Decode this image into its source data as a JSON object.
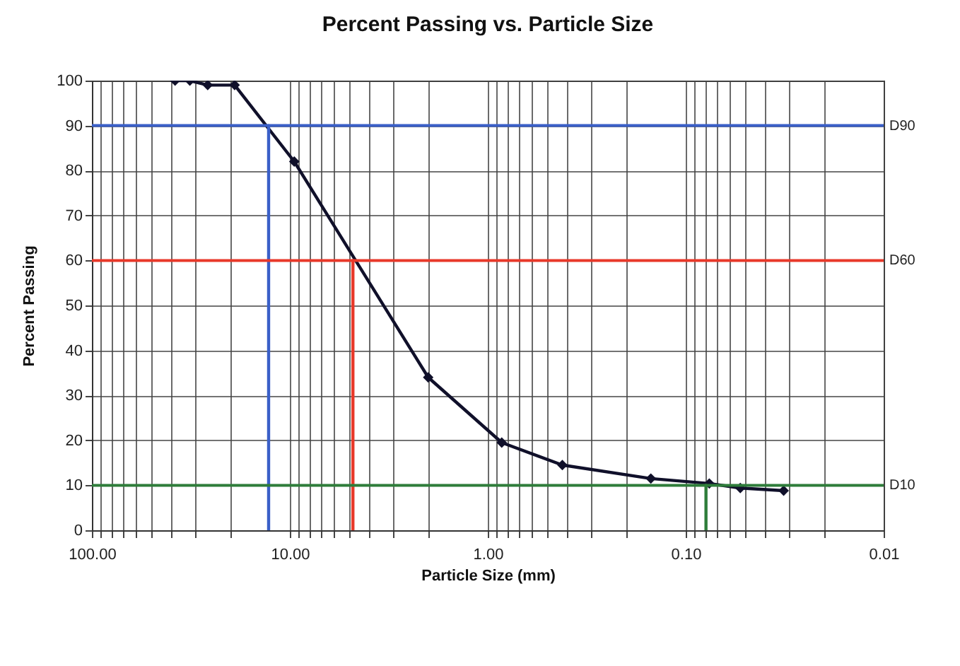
{
  "chart_data": {
    "type": "line",
    "title": "Percent Passing vs. Particle Size",
    "xlabel": "Particle Size (mm)",
    "ylabel": "Percent Passing",
    "log": "x",
    "xlim": [
      100,
      0.01
    ],
    "ylim": [
      0,
      100
    ],
    "xticks": [
      {
        "value": 100,
        "label": "100.00"
      },
      {
        "value": 90,
        "label": null
      },
      {
        "value": 80,
        "label": null
      },
      {
        "value": 70,
        "label": null
      },
      {
        "value": 60,
        "label": null
      },
      {
        "value": 50,
        "label": null
      },
      {
        "value": 40,
        "label": null
      },
      {
        "value": 30,
        "label": null
      },
      {
        "value": 20,
        "label": null
      },
      {
        "value": 10,
        "label": "10.00"
      },
      {
        "value": 9,
        "label": null
      },
      {
        "value": 8,
        "label": null
      },
      {
        "value": 7,
        "label": null
      },
      {
        "value": 6,
        "label": null
      },
      {
        "value": 5,
        "label": null
      },
      {
        "value": 4,
        "label": null
      },
      {
        "value": 3,
        "label": null
      },
      {
        "value": 2,
        "label": null
      },
      {
        "value": 1,
        "label": "1.00"
      },
      {
        "value": 0.9,
        "label": null
      },
      {
        "value": 0.8,
        "label": null
      },
      {
        "value": 0.7,
        "label": null
      },
      {
        "value": 0.6,
        "label": null
      },
      {
        "value": 0.5,
        "label": null
      },
      {
        "value": 0.4,
        "label": null
      },
      {
        "value": 0.3,
        "label": null
      },
      {
        "value": 0.2,
        "label": null
      },
      {
        "value": 0.1,
        "label": "0.10"
      },
      {
        "value": 0.09,
        "label": null
      },
      {
        "value": 0.08,
        "label": null
      },
      {
        "value": 0.07,
        "label": null
      },
      {
        "value": 0.06,
        "label": null
      },
      {
        "value": 0.05,
        "label": null
      },
      {
        "value": 0.04,
        "label": null
      },
      {
        "value": 0.03,
        "label": null
      },
      {
        "value": 0.02,
        "label": null
      },
      {
        "value": 0.01,
        "label": "0.01"
      }
    ],
    "yticks": [
      0,
      10,
      20,
      30,
      40,
      50,
      60,
      70,
      80,
      90,
      100
    ],
    "grid": true,
    "marker": "diamond",
    "line_style": "solid",
    "series": [
      {
        "color": "#10102a",
        "x": [
          38,
          32,
          26,
          19,
          9.5,
          2.0,
          0.85,
          0.42,
          0.15,
          0.076,
          0.053,
          0.032
        ],
        "values": [
          100,
          100,
          99,
          99,
          82,
          34,
          19.5,
          14.5,
          11.5,
          10.4,
          9.4,
          8.8
        ]
      },
      {
        "color": "#3a5fc8",
        "marker": "none",
        "x": [
          12.8,
          12.8
        ],
        "values": [
          90,
          0
        ]
      },
      {
        "color": "#e8392a",
        "marker": "none",
        "x": [
          4.8,
          4.8
        ],
        "values": [
          60,
          0
        ]
      },
      {
        "color": "#2e7d3a",
        "marker": "none",
        "x": [
          0.079,
          0.079
        ],
        "values": [
          10,
          0
        ]
      }
    ],
    "ref_lines": [
      {
        "axis": "y",
        "value": 90,
        "label": "D90",
        "color": "#3a5fc8"
      },
      {
        "axis": "y",
        "value": 60,
        "label": "D60",
        "color": "#e8392a"
      },
      {
        "axis": "y",
        "value": 10,
        "label": "D10",
        "color": "#2e7d3a"
      }
    ]
  }
}
